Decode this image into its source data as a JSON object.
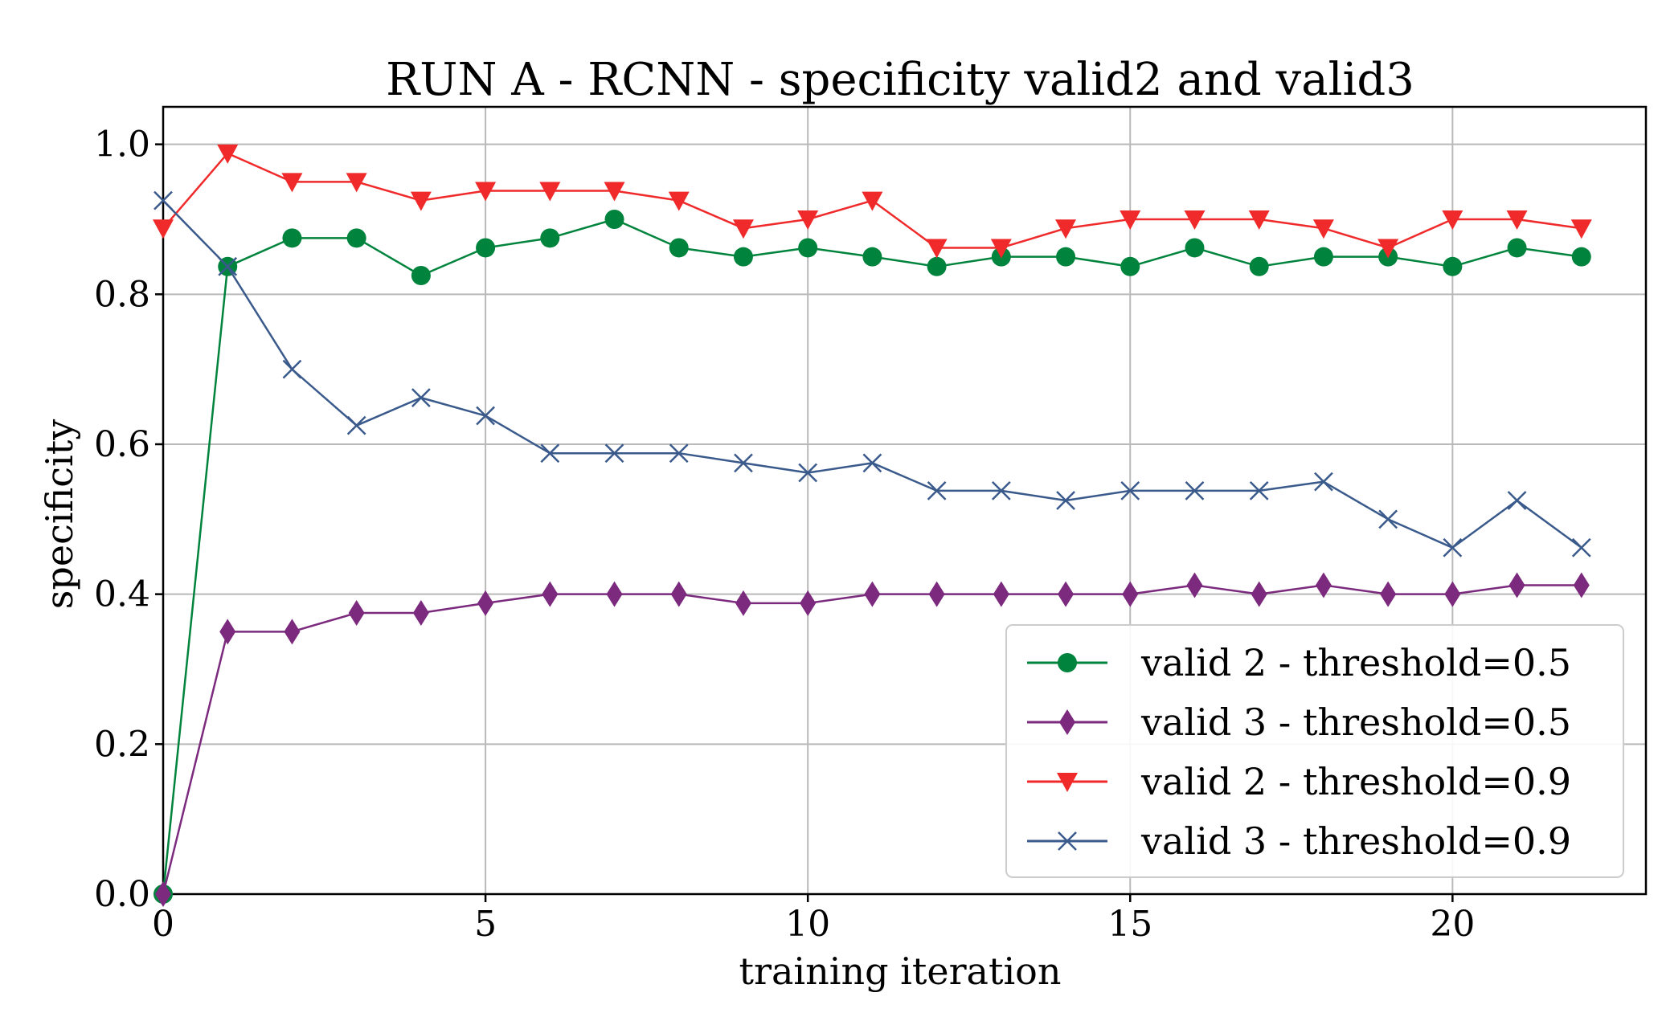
{
  "chart_data": {
    "type": "line",
    "title": "RUN A - RCNN - specificity valid2 and valid3",
    "xlabel": "training iteration",
    "ylabel": "specificity",
    "xlim": [
      0,
      23
    ],
    "ylim": [
      0,
      1.05
    ],
    "xticks": [
      0,
      5,
      10,
      15,
      20
    ],
    "yticks": [
      0.0,
      0.2,
      0.4,
      0.6,
      0.8,
      1.0
    ],
    "grid": true,
    "legend_position": "lower-right",
    "x": [
      0,
      1,
      2,
      3,
      4,
      5,
      6,
      7,
      8,
      9,
      10,
      11,
      12,
      13,
      14,
      15,
      16,
      17,
      18,
      19,
      20,
      21,
      22
    ],
    "series": [
      {
        "name": "valid 2 - threshold=0.5",
        "color": "#00833c",
        "marker": "circle",
        "values": [
          0.0,
          0.837,
          0.875,
          0.875,
          0.825,
          0.862,
          0.875,
          0.9,
          0.862,
          0.85,
          0.862,
          0.85,
          0.837,
          0.85,
          0.85,
          0.837,
          0.862,
          0.837,
          0.85,
          0.85,
          0.837,
          0.862,
          0.85
        ]
      },
      {
        "name": "valid 3 - threshold=0.5",
        "color": "#7b2a7e",
        "marker": "diamond",
        "values": [
          0.0,
          0.35,
          0.35,
          0.375,
          0.375,
          0.388,
          0.4,
          0.4,
          0.4,
          0.388,
          0.388,
          0.4,
          0.4,
          0.4,
          0.4,
          0.4,
          0.412,
          0.4,
          0.412,
          0.4,
          0.4,
          0.412,
          0.412
        ]
      },
      {
        "name": "valid 2 - threshold=0.9",
        "color": "#f02a2a",
        "marker": "triangle-down",
        "values": [
          0.888,
          0.988,
          0.95,
          0.95,
          0.925,
          0.938,
          0.938,
          0.938,
          0.925,
          0.888,
          0.9,
          0.925,
          0.862,
          0.862,
          0.888,
          0.9,
          0.9,
          0.9,
          0.888,
          0.862,
          0.9,
          0.9,
          0.888
        ]
      },
      {
        "name": "valid 3 - threshold=0.9",
        "color": "#3a5a8c",
        "marker": "x",
        "values": [
          0.925,
          0.837,
          0.7,
          0.625,
          0.662,
          0.638,
          0.588,
          0.588,
          0.588,
          0.575,
          0.562,
          0.575,
          0.538,
          0.538,
          0.525,
          0.538,
          0.538,
          0.538,
          0.55,
          0.5,
          0.462,
          0.525,
          0.462
        ]
      }
    ]
  }
}
